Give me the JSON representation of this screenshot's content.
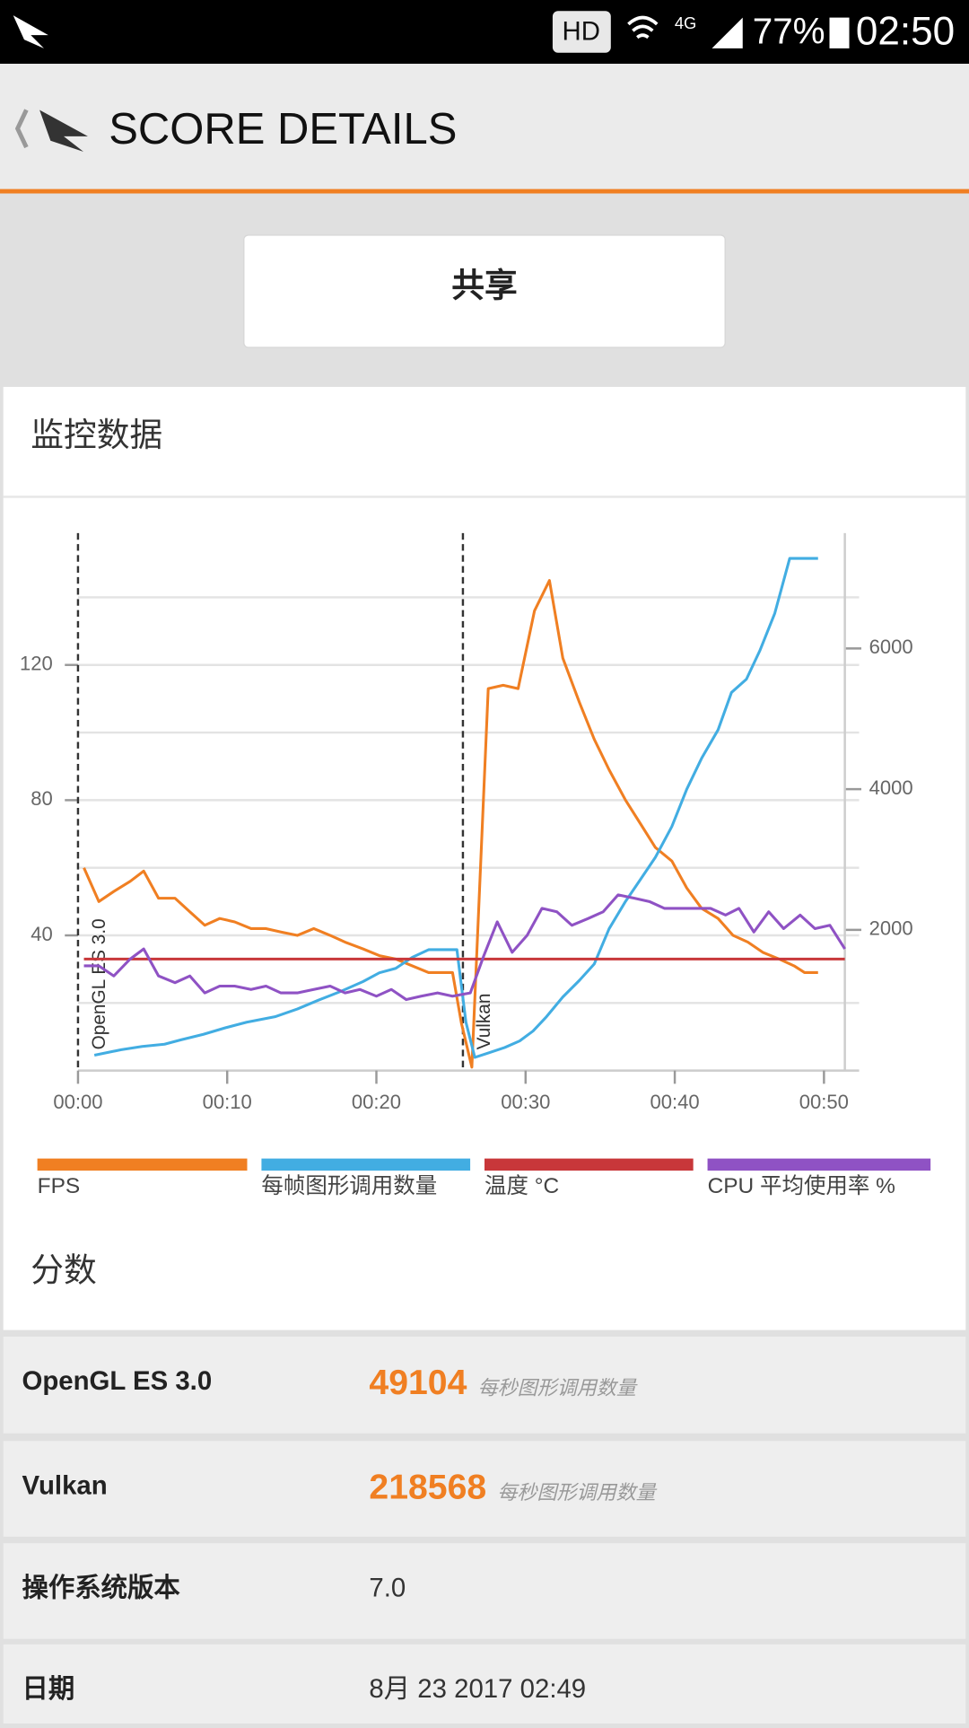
{
  "status_bar": {
    "hd": "HD",
    "network": "4G",
    "battery": "77%",
    "time": "02:50"
  },
  "header": {
    "title": "SCORE DETAILS"
  },
  "share_button": "共享",
  "monitor_title": "监控数据",
  "chart_data": {
    "type": "line",
    "xlim": [
      0,
      51.4
    ],
    "xticks": [
      {
        "value": 0,
        "label": "00:00"
      },
      {
        "value": 10,
        "label": "00:10"
      },
      {
        "value": 20,
        "label": "00:20"
      },
      {
        "value": 30,
        "label": "00:30"
      },
      {
        "value": 40,
        "label": "00:40"
      },
      {
        "value": 50,
        "label": "00:50"
      }
    ],
    "ylim": [
      0,
      159
    ],
    "yticks": [
      40,
      80,
      120
    ],
    "ygrid": [
      20,
      40,
      60,
      80,
      100,
      120,
      140
    ],
    "y2lim": [
      0,
      7640
    ],
    "y2ticks": [
      2000,
      4000,
      6000
    ],
    "grid": true,
    "annotations": [
      {
        "x": 0,
        "label": "OpenGL ES 3.0"
      },
      {
        "x": 25.8,
        "label": "Vulkan"
      }
    ],
    "series": [
      {
        "name": "FPS",
        "color": "#f07f22",
        "x": [
          0.4,
          1.4,
          2.4,
          3.5,
          4.4,
          5.4,
          6.5,
          7.5,
          8.5,
          9.5,
          10.5,
          11.6,
          12.6,
          13.6,
          14.7,
          15.8,
          16.9,
          17.9,
          19.1,
          20.2,
          21.3,
          22.4,
          23.5,
          24.2,
          25.1,
          25.7,
          26.4,
          27.5,
          28.5,
          29.5,
          30.6,
          31.6,
          32.5,
          33.6,
          34.6,
          35.6,
          36.7,
          37.7,
          38.7,
          39.8,
          40.8,
          41.8,
          42.9,
          43.9,
          44.9,
          45.9,
          47.0,
          48.0,
          48.7,
          49.6
        ],
        "values": [
          60,
          50,
          53,
          56,
          59,
          51,
          51,
          47,
          43,
          45,
          44,
          42,
          42,
          41,
          40,
          42,
          40,
          38,
          36,
          34,
          33,
          31,
          29,
          29,
          29,
          14,
          1,
          113,
          114,
          113,
          136,
          145,
          122,
          109,
          98,
          89,
          80,
          73,
          66,
          62,
          54,
          48,
          45,
          40,
          38,
          35,
          33,
          31,
          29,
          29
        ]
      },
      {
        "name": "每帧图形调用数量",
        "color": "#42ade2",
        "axis": "y2",
        "x": [
          1.1,
          2.9,
          4.3,
          5.8,
          6.9,
          8.4,
          9.9,
          11.3,
          13.2,
          14.7,
          16.1,
          17.6,
          19.1,
          20.2,
          21.3,
          22.4,
          23.5,
          24.6,
          25.4,
          26.0,
          26.6,
          27.5,
          28.6,
          29.6,
          30.5,
          31.4,
          32.5,
          33.6,
          34.6,
          35.6,
          36.7,
          37.7,
          38.7,
          39.8,
          40.8,
          41.8,
          42.9,
          43.8,
          44.8,
          45.7,
          46.7,
          47.7,
          49.6
        ],
        "values": [
          219,
          297,
          344,
          375,
          438,
          516,
          609,
          688,
          766,
          875,
          1000,
          1125,
          1266,
          1391,
          1453,
          1609,
          1719,
          1719,
          1719,
          688,
          188,
          250,
          328,
          422,
          563,
          766,
          1047,
          1281,
          1516,
          2016,
          2406,
          2719,
          3031,
          3469,
          4000,
          4438,
          4844,
          5375,
          5563,
          5969,
          6500,
          7281,
          7281
        ]
      },
      {
        "name": "温度 °C",
        "color": "#c8373a",
        "x": [
          0.4,
          25.8,
          51.4
        ],
        "values": [
          33,
          33,
          33
        ]
      },
      {
        "name": "CPU 平均使用率 %",
        "color": "#8f52c4",
        "x": [
          0.4,
          1.4,
          2.4,
          3.5,
          4.4,
          5.4,
          6.5,
          7.5,
          8.5,
          9.5,
          10.5,
          11.6,
          12.6,
          13.6,
          14.7,
          15.8,
          16.9,
          17.9,
          18.9,
          20.0,
          21.0,
          22.0,
          23.0,
          24.1,
          25.1,
          26.3,
          27.2,
          28.1,
          29.1,
          30.1,
          31.1,
          32.1,
          33.1,
          34.2,
          35.2,
          36.2,
          37.3,
          38.3,
          39.3,
          40.4,
          41.4,
          42.4,
          43.4,
          44.3,
          45.3,
          46.3,
          47.3,
          48.4,
          49.4,
          50.4,
          51.4
        ],
        "values": [
          31,
          31,
          28,
          33,
          36,
          28,
          26,
          28,
          23,
          25,
          25,
          24,
          25,
          23,
          23,
          24,
          25,
          23,
          24,
          22,
          24,
          21,
          22,
          23,
          22,
          23,
          34,
          44,
          35,
          40,
          48,
          47,
          43,
          45,
          47,
          52,
          51,
          50,
          48,
          48,
          48,
          48,
          46,
          48,
          41,
          47,
          42,
          46,
          42,
          43,
          36
        ]
      }
    ]
  },
  "scores": {
    "title": "分数",
    "rows": [
      {
        "label": "OpenGL ES 3.0",
        "value": "49104",
        "unit": "每秒图形调用数量"
      },
      {
        "label": "Vulkan",
        "value": "218568",
        "unit": "每秒图形调用数量"
      },
      {
        "label": "操作系统版本",
        "value": "7.0"
      },
      {
        "label": "日期",
        "value": "8月 23 2017 02:49"
      }
    ]
  }
}
